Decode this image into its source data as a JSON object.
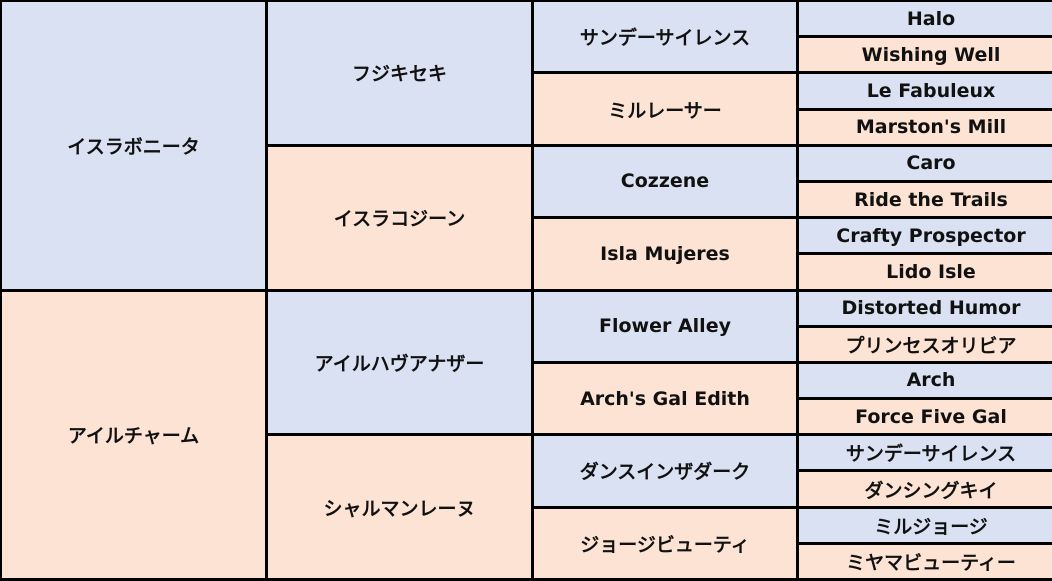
{
  "colors": {
    "male": "#dae1f2",
    "female": "#fde3d4",
    "border": "#000000"
  },
  "generations": [
    [
      "イスラボニータ",
      "アイルチャーム"
    ],
    [
      "フジキセキ",
      "イスラコジーン",
      "アイルハヴアナザー",
      "シャルマンレーヌ"
    ],
    [
      "サンデーサイレンス",
      "ミルレーサー",
      "Cozzene",
      "Isla Mujeres",
      "Flower Alley",
      "Arch's Gal Edith",
      "ダンスインザダーク",
      "ジョージビューティ"
    ],
    [
      "Halo",
      "Wishing Well",
      "Le Fabuleux",
      "Marston's Mill",
      "Caro",
      "Ride the Trails",
      "Crafty Prospector",
      "Lido Isle",
      "Distorted Humor",
      "プリンセスオリビア",
      "Arch",
      "Force Five Gal",
      "サンデーサイレンス",
      "ダンシングキイ",
      "ミルジョージ",
      "ミヤマビューティー"
    ]
  ]
}
